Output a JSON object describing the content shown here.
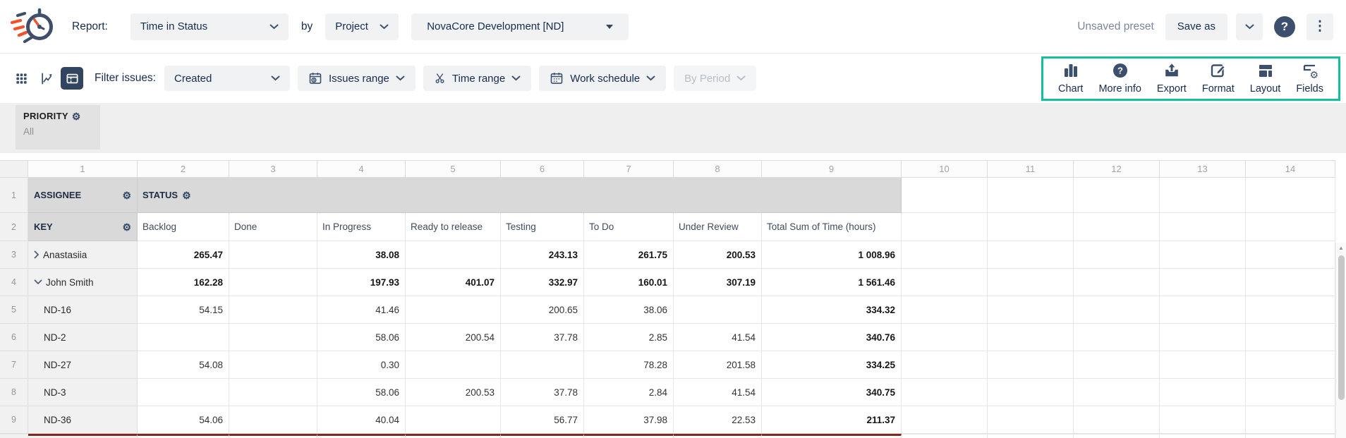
{
  "colors": {
    "accent": "#14bf9b",
    "selected-view-bg": "#314560",
    "total-row-border": "#7b2b21",
    "icon-navy": "#3c4f6d"
  },
  "header": {
    "report_label": "Report:",
    "report_type": "Time in Status",
    "by_label": "by",
    "group_by": "Project",
    "project": "NovaCore Development [ND]",
    "preset_status": "Unsaved preset",
    "save_as_label": "Save as"
  },
  "toolbar": {
    "filter_issues_label": "Filter issues:",
    "filter_value": "Created",
    "issues_range_label": "Issues range",
    "time_range_label": "Time range",
    "work_schedule_label": "Work schedule",
    "by_period_label": "By Period",
    "view_modes": [
      {
        "icon": "grid-view-icon",
        "selected": false
      },
      {
        "icon": "chart-view-icon",
        "selected": false
      },
      {
        "icon": "pivot-view-icon",
        "selected": true
      }
    ],
    "actions": [
      {
        "label": "Chart",
        "icon": "bar-chart-icon"
      },
      {
        "label": "More info",
        "icon": "question-circle-icon"
      },
      {
        "label": "Export",
        "icon": "export-icon"
      },
      {
        "label": "Format",
        "icon": "format-icon"
      },
      {
        "label": "Layout",
        "icon": "layout-icon"
      },
      {
        "label": "Fields",
        "icon": "fields-icon"
      }
    ]
  },
  "filters": {
    "priority_label": "PRIORITY",
    "priority_value": "All"
  },
  "grid": {
    "corner": "",
    "column_numbers": [
      "1",
      "2",
      "3",
      "4",
      "5",
      "6",
      "7",
      "8",
      "9",
      "10",
      "11",
      "12",
      "13",
      "14"
    ],
    "header_row1": {
      "num": "1",
      "assignee_label": "ASSIGNEE",
      "status_label": "STATUS"
    },
    "header_row2": {
      "num": "2",
      "key_label": "KEY",
      "status_columns": [
        "Backlog",
        "Done",
        "In Progress",
        "Ready to release",
        "Testing",
        "To Do",
        "Under Review",
        "Total Sum of Time (hours)"
      ]
    },
    "rows": [
      {
        "num": "3",
        "label": "Anastasiia",
        "type": "group-collapsed",
        "values": [
          "265.47",
          "",
          "38.08",
          "",
          "243.13",
          "261.75",
          "200.53"
        ],
        "total": "1 008.96"
      },
      {
        "num": "4",
        "label": "John Smith",
        "type": "group-expanded",
        "values": [
          "162.28",
          "",
          "197.93",
          "401.07",
          "332.97",
          "160.01",
          "307.19"
        ],
        "total": "1 561.46"
      },
      {
        "num": "5",
        "label": "ND-16",
        "type": "item",
        "values": [
          "54.15",
          "",
          "41.46",
          "",
          "200.65",
          "38.06",
          ""
        ],
        "total": "334.32"
      },
      {
        "num": "6",
        "label": "ND-2",
        "type": "item",
        "values": [
          "",
          "",
          "58.06",
          "200.54",
          "37.78",
          "2.85",
          "41.54"
        ],
        "total": "340.76"
      },
      {
        "num": "7",
        "label": "ND-27",
        "type": "item",
        "values": [
          "54.08",
          "",
          "0.30",
          "",
          "",
          "78.28",
          "201.58"
        ],
        "total": "334.25"
      },
      {
        "num": "8",
        "label": "ND-3",
        "type": "item",
        "values": [
          "",
          "",
          "58.06",
          "200.53",
          "37.78",
          "2.84",
          "41.54"
        ],
        "total": "340.75"
      },
      {
        "num": "9",
        "label": "ND-36",
        "type": "item",
        "values": [
          "54.06",
          "",
          "40.04",
          "",
          "56.77",
          "37.98",
          "22.53"
        ],
        "total": "211.37"
      }
    ]
  }
}
